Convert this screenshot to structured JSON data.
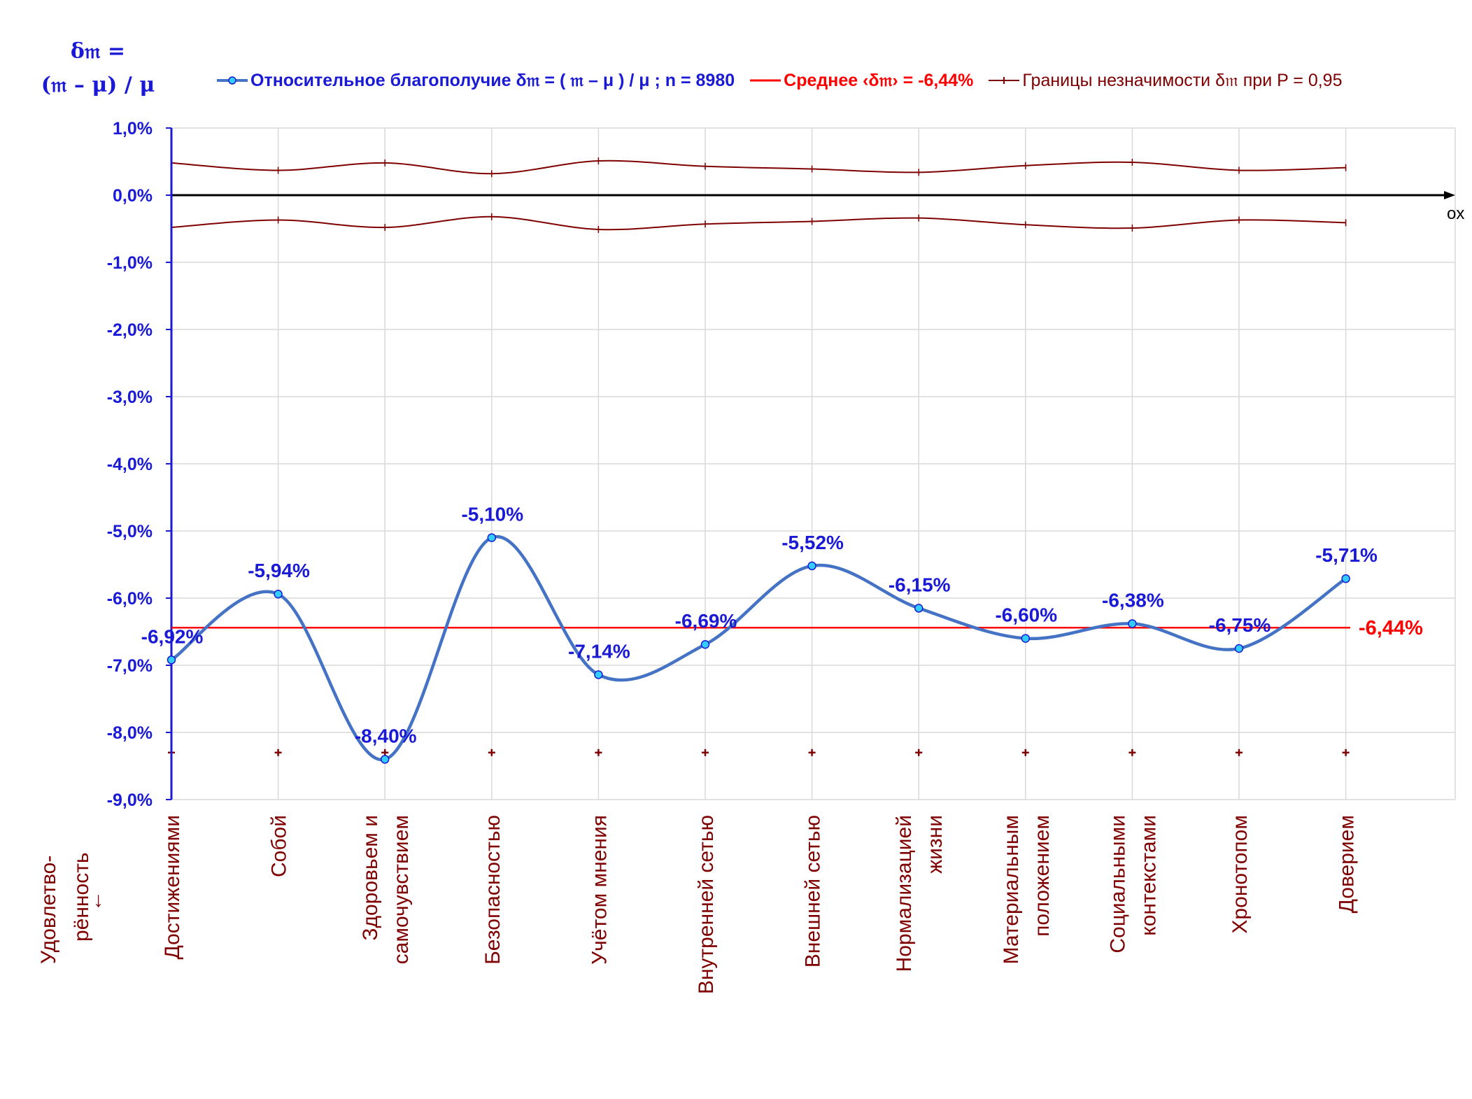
{
  "axis_title": {
    "line1": "δ𝔪 =",
    "line2": "(𝔪 – μ) / μ"
  },
  "x_axis_label": "ox",
  "row_title": {
    "line1": "Удовлетво-",
    "line2": "рённость",
    "arrow": "↓"
  },
  "legend": {
    "main": "Относительное благополучие δ𝔪 = ( 𝔪 – μ ) / μ ; n = 8980",
    "mean": "Среднее ‹δ𝔪› = -6,44%",
    "bounds": "Границы незначимости δ𝔪 при P = 0,95"
  },
  "colors": {
    "main_line": "#4472c4",
    "marker_fill": "#33ccff",
    "mean_line": "#ff0000",
    "bounds_line": "#7f0000",
    "axis": "#1a1ad6",
    "grid": "#d9d9d9",
    "label_text": "#1a1ad6"
  },
  "chart_data": {
    "type": "line",
    "categories": [
      "Достижениями",
      "Собой",
      "Здоровьем и самочувствием",
      "Безопасностью",
      "Учётом мнения",
      "Внутренней сетью",
      "Внешней сетью",
      "Нормализацией жизни",
      "Материальным положением",
      "Социальными контекстами",
      "Хронотопом",
      "Доверием"
    ],
    "category_lines": [
      [
        "Достижениями"
      ],
      [
        "Собой"
      ],
      [
        "Здоровьем и",
        "самочувствием"
      ],
      [
        "Безопасностью"
      ],
      [
        "Учётом мнения"
      ],
      [
        "Внутренней сетью"
      ],
      [
        "Внешней сетью"
      ],
      [
        "Нормализацией",
        "жизни"
      ],
      [
        "Материальным",
        "положением"
      ],
      [
        "Социальными",
        "контекстами"
      ],
      [
        "Хронотопом"
      ],
      [
        "Доверием"
      ]
    ],
    "series": [
      {
        "name": "Относительное благополучие δ𝔪 = ( 𝔪 – μ ) / μ ; n = 8980",
        "values": [
          -6.92,
          -5.94,
          -8.4,
          -5.1,
          -7.14,
          -6.69,
          -5.52,
          -6.15,
          -6.6,
          -6.38,
          -6.75,
          -5.71
        ],
        "labels": [
          "-6,92%",
          "-5,94%",
          "-8,40%",
          "-5,10%",
          "-7,14%",
          "-6,69%",
          "-5,52%",
          "-6,15%",
          "-6,60%",
          "-6,38%",
          "-6,75%",
          "-5,71%"
        ]
      },
      {
        "name": "Среднее ‹δ𝔪› = -6,44%",
        "value": -6.44,
        "label": "-6,44%"
      },
      {
        "name": "Границы незначимости δ𝔪 при P = 0,95",
        "upper": [
          0.48,
          0.37,
          0.48,
          0.32,
          0.51,
          0.43,
          0.39,
          0.34,
          0.44,
          0.49,
          0.37,
          0.41
        ],
        "lower": [
          -0.48,
          -0.37,
          -0.48,
          -0.32,
          -0.51,
          -0.43,
          -0.39,
          -0.34,
          -0.44,
          -0.49,
          -0.37,
          -0.41
        ]
      }
    ],
    "marker_row_value": -8.3,
    "yticks": [
      "1,0%",
      "0,0%",
      "-1,0%",
      "-2,0%",
      "-3,0%",
      "-4,0%",
      "-5,0%",
      "-6,0%",
      "-7,0%",
      "-8,0%",
      "-9,0%"
    ],
    "ytick_values": [
      1,
      0,
      -1,
      -2,
      -3,
      -4,
      -5,
      -6,
      -7,
      -8,
      -9
    ],
    "ylim": [
      -9,
      1
    ],
    "grid": true,
    "legend_position": "top"
  }
}
